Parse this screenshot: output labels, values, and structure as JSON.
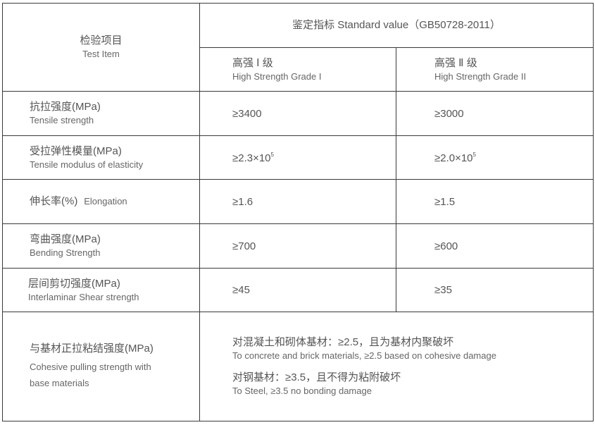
{
  "header": {
    "test_item_zh": "检验项目",
    "test_item_en": "Test Item",
    "standard": "鉴定指标 Standard value（GB50728-2011）",
    "grade1_zh": "高强 Ⅰ 级",
    "grade1_en": "High Strength Grade I",
    "grade2_zh": "高强 Ⅱ 级",
    "grade2_en": "High Strength Grade II"
  },
  "rows": [
    {
      "zh": "抗拉强度(MPa)",
      "en": "Tensile strength",
      "g1": "≥3400",
      "g2": "≥3000"
    },
    {
      "zh": "受拉弹性模量(MPa)",
      "en": "Tensile modulus of elasticity",
      "g1": "≥2.3×10",
      "g1_exp": "5",
      "g2": "≥2.0×10",
      "g2_exp": "5"
    },
    {
      "zh": "伸长率(%)",
      "en": "Elongation",
      "g1": "≥1.6",
      "g2": "≥1.5"
    },
    {
      "zh": "弯曲强度(MPa)",
      "en": "Bending Strength",
      "g1": "≥700",
      "g2": "≥600"
    },
    {
      "zh": "层间剪切强度(MPa)",
      "en": "Interlaminar Shear strength",
      "g1": "≥45",
      "g2": "≥35"
    },
    {
      "zh": "与基材正拉粘结强度(MPa)",
      "en1": "Cohesive pulling strength with",
      "en2": "base materials",
      "concrete_zh": "对混凝土和砌体基材：≥2.5，且为基材内聚破坏",
      "concrete_en": "To concrete and brick materials, ≥2.5 based on cohesive damage",
      "steel_zh": "对钢基材：≥3.5，且不得为粘附破坏",
      "steel_en": "To Steel, ≥3.5 no bonding damage"
    }
  ]
}
